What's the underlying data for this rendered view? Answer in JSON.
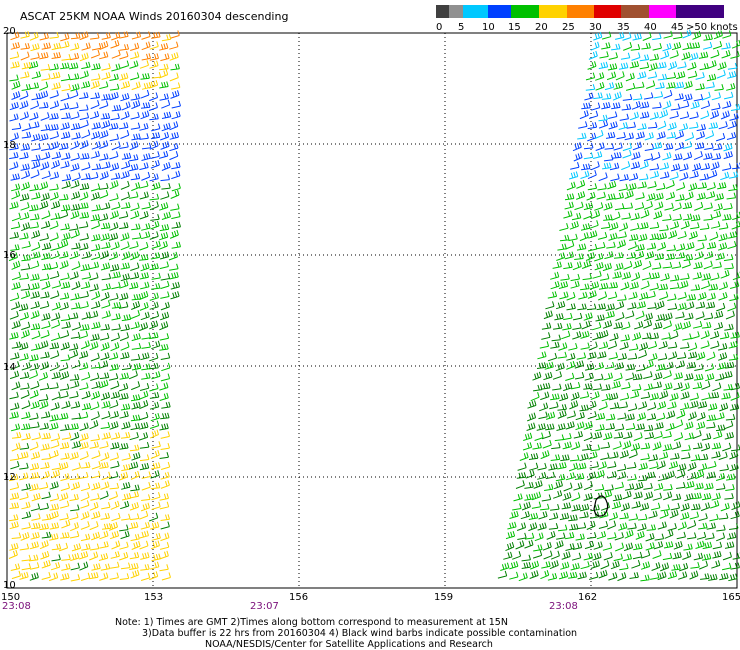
{
  "title": "ASCAT 25KM NOAA Winds 20160304 descending",
  "legend": {
    "bins": [
      {
        "label": "0",
        "color": "#404040"
      },
      {
        "label": "5",
        "color": "#909090"
      },
      {
        "label": "10",
        "color": "#00c8ff"
      },
      {
        "label": "15",
        "color": "#0040ff"
      },
      {
        "label": "20",
        "color": "#00c000"
      },
      {
        "label": "25",
        "color": "#ffd200"
      },
      {
        "label": "30",
        "color": "#ff8000"
      },
      {
        "label": "35",
        "color": "#e00000"
      },
      {
        "label": "40",
        "color": "#a05030"
      },
      {
        "label": "45",
        "color": "#ff00ff"
      },
      {
        "label": ">50 knots",
        "color": "#400080"
      }
    ]
  },
  "axes": {
    "lat_ticks": [
      "20",
      "18",
      "16",
      "14",
      "12",
      "10"
    ],
    "lon_ticks": [
      "150",
      "153",
      "156",
      "159",
      "162",
      "165"
    ],
    "lat_range": [
      10,
      20
    ],
    "lon_range": [
      150,
      165
    ],
    "grid": true
  },
  "times": [
    "23:08",
    "23:07",
    "23:08"
  ],
  "notes": {
    "line1": "Note: 1) Times are GMT 2)Times along bottom correspond to measurement at 15N",
    "line2": "3)Data buffer is 22 hrs from 20160304 4) Black wind barbs indicate possible contamination",
    "line3": "NOAA/NESDIS/Center for Satellite Applications and Research"
  },
  "swaths": [
    {
      "name": "west-swath",
      "lon_west": 150,
      "lon_east_north": 153.6,
      "lon_east_south": 153.3
    },
    {
      "name": "east-swath",
      "lon_west_north": 162,
      "lon_west_south": 160.0,
      "lon_east": 165
    }
  ]
}
